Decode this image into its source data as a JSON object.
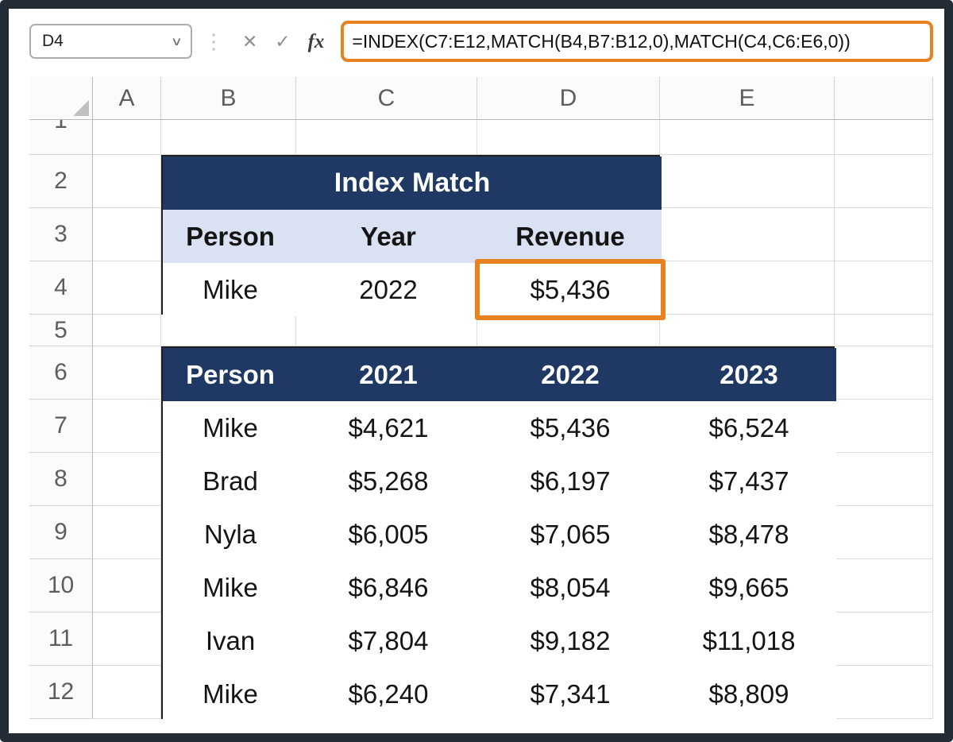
{
  "formula_bar": {
    "name_box_value": "D4",
    "chevron_icon": "∨",
    "more_icon": "⋮",
    "cancel_icon": "✕",
    "enter_icon": "✓",
    "fx_icon": "fx",
    "formula": "=INDEX(C7:E12,MATCH(B4,B7:B12,0),MATCH(C4,C6:E6,0))"
  },
  "grid": {
    "columns": [
      "A",
      "B",
      "C",
      "D",
      "E"
    ],
    "rows": [
      "1",
      "2",
      "3",
      "4",
      "5",
      "6",
      "7",
      "8",
      "9",
      "10",
      "11",
      "12"
    ]
  },
  "lookup_table": {
    "title": "Index Match",
    "headers": [
      "Person",
      "Year",
      "Revenue"
    ],
    "values": [
      "Mike",
      "2022",
      "$5,436"
    ]
  },
  "data_table": {
    "headers": [
      "Person",
      "2021",
      "2022",
      "2023"
    ],
    "rows": [
      [
        "Mike",
        "$4,621",
        "$5,436",
        "$6,524"
      ],
      [
        "Brad",
        "$5,268",
        "$6,197",
        "$7,437"
      ],
      [
        "Nyla",
        "$6,005",
        "$7,065",
        "$8,478"
      ],
      [
        "Mike",
        "$6,846",
        "$8,054",
        "$9,665"
      ],
      [
        "Ivan",
        "$7,804",
        "$9,182",
        "$11,018"
      ],
      [
        "Mike",
        "$6,240",
        "$7,341",
        "$8,809"
      ]
    ]
  },
  "colors": {
    "header_navy": "#1F3864",
    "subheader_blue": "#D9E1F2",
    "highlight_orange": "#E8821E",
    "frame_dark": "#222B36"
  }
}
